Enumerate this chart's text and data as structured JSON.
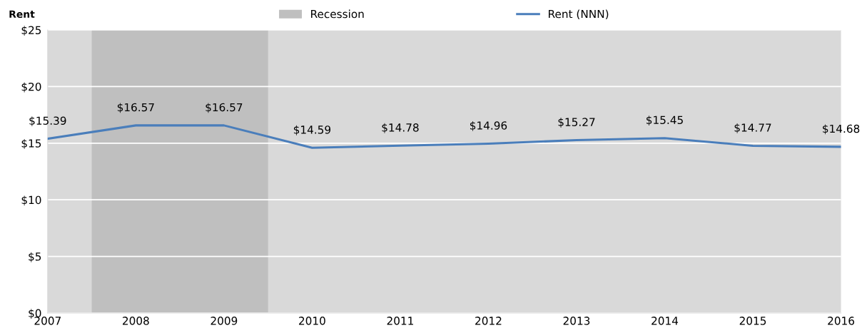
{
  "chart_data": {
    "type": "line",
    "ylabel": "Rent",
    "x": [
      2007,
      2008,
      2009,
      2010,
      2011,
      2012,
      2013,
      2014,
      2015,
      2016
    ],
    "series": [
      {
        "name": "Rent (NNN)",
        "color": "#4a7ebb",
        "values": [
          15.39,
          16.57,
          16.57,
          14.59,
          14.78,
          14.96,
          15.27,
          15.45,
          14.77,
          14.68
        ],
        "value_labels": [
          "$15.39",
          "$16.57",
          "$16.57",
          "$14.59",
          "$14.78",
          "$14.96",
          "$15.27",
          "$15.45",
          "$14.77",
          "$14.68"
        ]
      }
    ],
    "bands": [
      {
        "axis": "x",
        "from": 2007.5,
        "to": 2009.5,
        "label": "Recession",
        "color": "#bfbfbf"
      }
    ],
    "xlim": [
      2007,
      2016
    ],
    "xticks": [
      2007,
      2008,
      2009,
      2010,
      2011,
      2012,
      2013,
      2014,
      2015,
      2016
    ],
    "ylim": [
      0,
      25
    ],
    "yticks": [
      {
        "value": 0,
        "label": "$0"
      },
      {
        "value": 5,
        "label": "$5"
      },
      {
        "value": 10,
        "label": "$10"
      },
      {
        "value": 15,
        "label": "$15"
      },
      {
        "value": 20,
        "label": "$20"
      },
      {
        "value": 25,
        "label": "$25"
      }
    ],
    "grid": "y",
    "legend": "top",
    "marker": "none",
    "line_style": "solid"
  }
}
